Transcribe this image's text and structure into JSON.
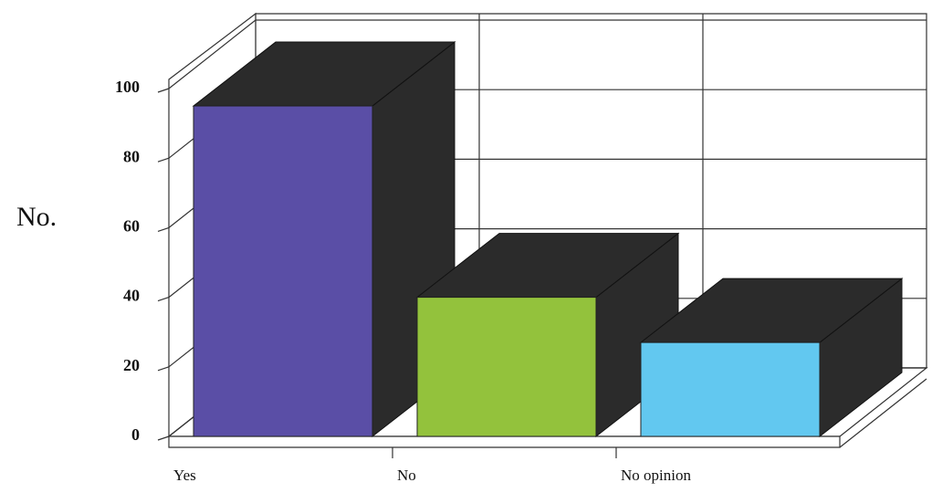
{
  "chart_data": {
    "type": "bar3d",
    "ylabel": "No.",
    "categories": [
      "Yes",
      "No",
      "No opinion"
    ],
    "values": [
      95,
      40,
      27
    ],
    "colors": [
      "#5a4ea6",
      "#93c23c",
      "#62c8f0"
    ],
    "side_color": "#2b2b2b",
    "ylim": [
      0,
      100
    ],
    "yticks": [
      0,
      20,
      40,
      60,
      80,
      100
    ],
    "grid": true
  }
}
